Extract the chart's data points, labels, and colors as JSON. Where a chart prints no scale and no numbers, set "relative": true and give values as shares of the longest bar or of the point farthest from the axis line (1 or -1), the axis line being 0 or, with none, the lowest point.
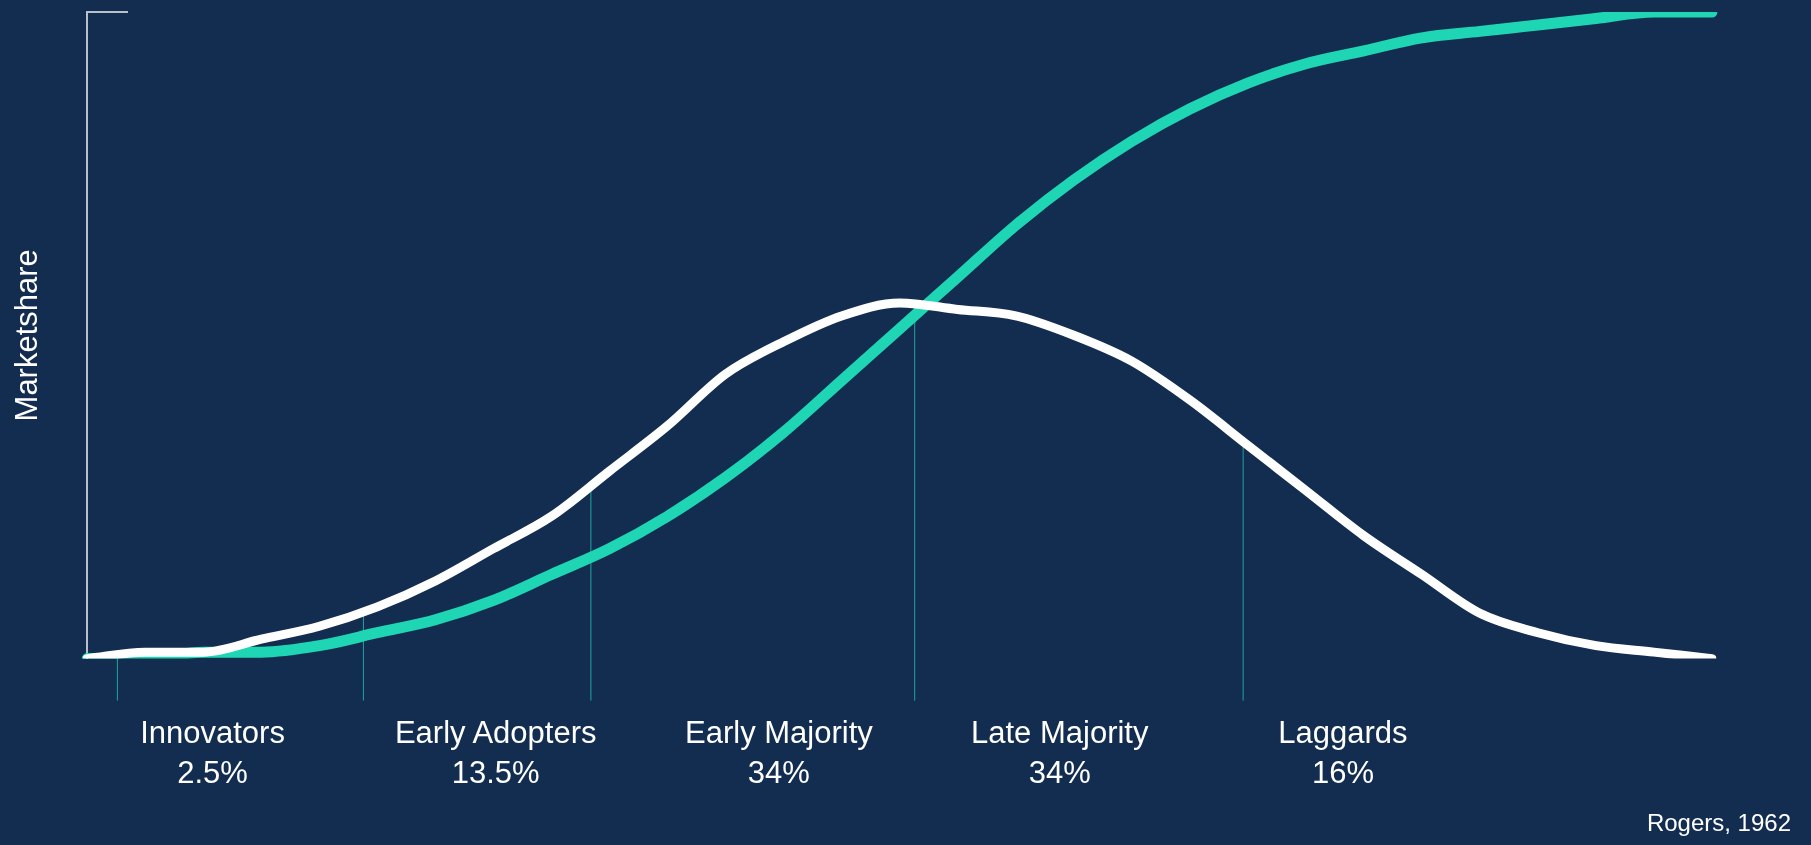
{
  "chart_data": {
    "type": "line",
    "relative": true,
    "ylabel": "Marketshare",
    "categories": [
      null,
      null,
      null,
      null,
      null,
      null,
      null,
      null,
      null,
      null,
      null,
      null,
      null,
      null,
      null,
      null,
      null,
      null,
      null,
      null,
      null,
      null,
      null,
      null,
      null,
      null,
      null,
      null,
      null
    ],
    "series": [
      {
        "color": "#ffffff",
        "values": [
          0,
          0.01,
          0.01,
          0.03,
          0.05,
          0.08,
          0.12,
          0.17,
          0.22,
          0.29,
          0.36,
          0.44,
          0.49,
          0.53,
          0.55,
          0.54,
          0.53,
          0.5,
          0.46,
          0.4,
          0.33,
          0.26,
          0.19,
          0.13,
          0.07,
          0.04,
          0.02,
          0.01,
          0
        ]
      },
      {
        "color": "#1ed6b4",
        "values": [
          0,
          0,
          0.01,
          0.01,
          0.02,
          0.04,
          0.06,
          0.09,
          0.13,
          0.17,
          0.22,
          0.28,
          0.35,
          0.43,
          0.51,
          0.59,
          0.67,
          0.74,
          0.8,
          0.85,
          0.89,
          0.92,
          0.94,
          0.96,
          0.97,
          0.98,
          0.99,
          1,
          1
        ]
      }
    ],
    "annotations": [
      "Innovators\n2.5%",
      "Early Adopters\n13.5%",
      "Early Majority\n34%",
      "Late Majority\n34%",
      "Laggards\n16%",
      "Rogers, 1962"
    ],
    "legend": false,
    "grid": false,
    "marker": "none",
    "line_style": "solid"
  }
}
